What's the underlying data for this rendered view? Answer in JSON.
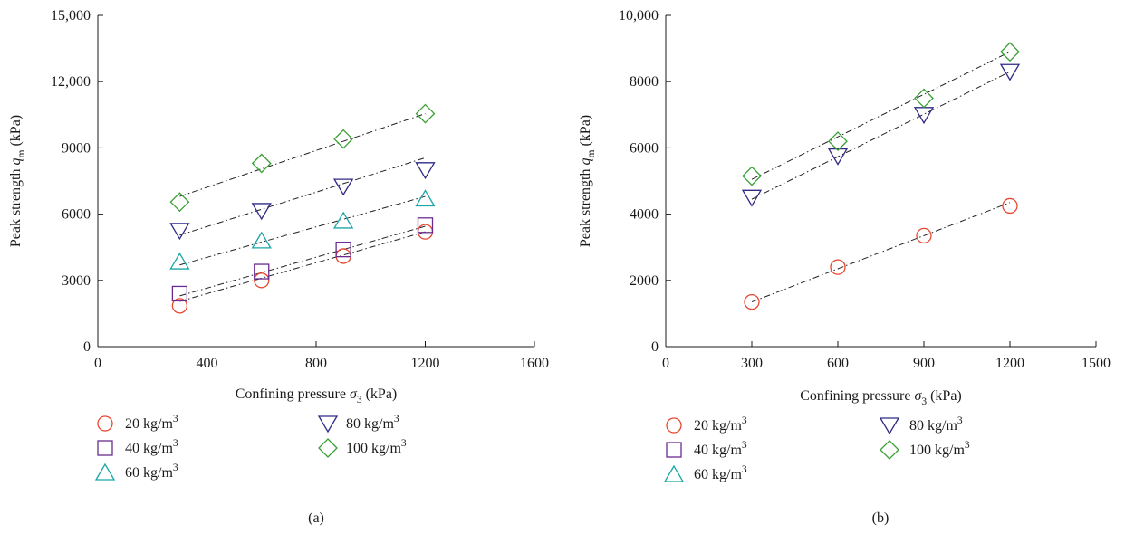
{
  "chart_data": [
    {
      "type": "scatter",
      "panel_label": "(a)",
      "xlabel": "Confining pressure σ3 (kPa)",
      "ylabel": "Peak strength qm (kPa)",
      "xlim": [
        0,
        1600
      ],
      "ylim": [
        0,
        15000
      ],
      "xticks": [
        0,
        400,
        800,
        1200,
        1600
      ],
      "xtick_labels": [
        "0",
        "400",
        "800",
        "1200",
        "1600"
      ],
      "yticks": [
        0,
        3000,
        6000,
        9000,
        12000,
        15000
      ],
      "ytick_labels": [
        "0",
        "3000",
        "6000",
        "9000",
        "12,000",
        "15,000"
      ],
      "grid": false,
      "legend_position": "bottom",
      "series": [
        {
          "name": "20 kg/m3",
          "marker": "circle",
          "color": "#e8462f",
          "x": [
            300,
            600,
            900,
            1200
          ],
          "y": [
            1850,
            3000,
            4100,
            5200
          ],
          "fit_line": {
            "x": [
              300,
              1200
            ],
            "y": [
              2050,
              5200
            ]
          }
        },
        {
          "name": "40 kg/m3",
          "marker": "square",
          "color": "#6a2c91",
          "x": [
            300,
            600,
            900,
            1200
          ],
          "y": [
            2400,
            3400,
            4400,
            5500
          ],
          "fit_line": {
            "x": [
              300,
              1200
            ],
            "y": [
              2300,
              5450
            ]
          }
        },
        {
          "name": "60 kg/m3",
          "marker": "triangle-up",
          "color": "#1aa6a6",
          "x": [
            300,
            600,
            900,
            1200
          ],
          "y": [
            3850,
            4800,
            5700,
            6700
          ],
          "fit_line": {
            "x": [
              300,
              1200
            ],
            "y": [
              3700,
              6800
            ]
          }
        },
        {
          "name": "80 kg/m3",
          "marker": "triangle-down",
          "color": "#2e2a86",
          "x": [
            300,
            600,
            900,
            1200
          ],
          "y": [
            5250,
            6150,
            7250,
            8000
          ],
          "fit_line": {
            "x": [
              300,
              1200
            ],
            "y": [
              5050,
              8550
            ]
          }
        },
        {
          "name": "100 kg/m3",
          "marker": "diamond",
          "color": "#3aa035",
          "x": [
            300,
            600,
            900,
            1200
          ],
          "y": [
            6550,
            8300,
            9400,
            10550
          ],
          "fit_line": {
            "x": [
              300,
              1200
            ],
            "y": [
              6800,
              10550
            ]
          }
        }
      ]
    },
    {
      "type": "scatter",
      "panel_label": "(b)",
      "xlabel": "Confining pressure σ3 (kPa)",
      "ylabel": "Peak strength qm (kPa)",
      "xlim": [
        0,
        1500
      ],
      "ylim": [
        0,
        10000
      ],
      "xticks": [
        0,
        300,
        600,
        900,
        1200,
        1500
      ],
      "xtick_labels": [
        "0",
        "300",
        "600",
        "900",
        "1200",
        "1500"
      ],
      "yticks": [
        0,
        2000,
        4000,
        6000,
        8000,
        10000
      ],
      "ytick_labels": [
        "0",
        "2000",
        "4000",
        "6000",
        "8000",
        "10,000"
      ],
      "grid": false,
      "legend_position": "bottom",
      "series": [
        {
          "name": "20 kg/m3",
          "marker": "circle",
          "color": "#e8462f",
          "x": [
            300,
            600,
            900,
            1200
          ],
          "y": [
            1350,
            2400,
            3350,
            4250
          ],
          "fit_line": {
            "x": [
              300,
              1200
            ],
            "y": [
              1350,
              4350
            ]
          }
        },
        {
          "name": "40 kg/m3",
          "marker": "square",
          "color": "#6a2c91",
          "x": [],
          "y": []
        },
        {
          "name": "60 kg/m3",
          "marker": "triangle-up",
          "color": "#1aa6a6",
          "x": [],
          "y": []
        },
        {
          "name": "80 kg/m3",
          "marker": "triangle-down",
          "color": "#2e2a86",
          "x": [
            300,
            600,
            900,
            1200
          ],
          "y": [
            4500,
            5750,
            7000,
            8300
          ],
          "fit_line": {
            "x": [
              300,
              1200
            ],
            "y": [
              4450,
              8300
            ]
          }
        },
        {
          "name": "100 kg/m3",
          "marker": "diamond",
          "color": "#3aa035",
          "x": [
            300,
            600,
            900,
            1200
          ],
          "y": [
            5150,
            6200,
            7500,
            8900
          ],
          "fit_line": {
            "x": [
              300,
              1200
            ],
            "y": [
              5050,
              8900
            ]
          }
        }
      ]
    }
  ]
}
